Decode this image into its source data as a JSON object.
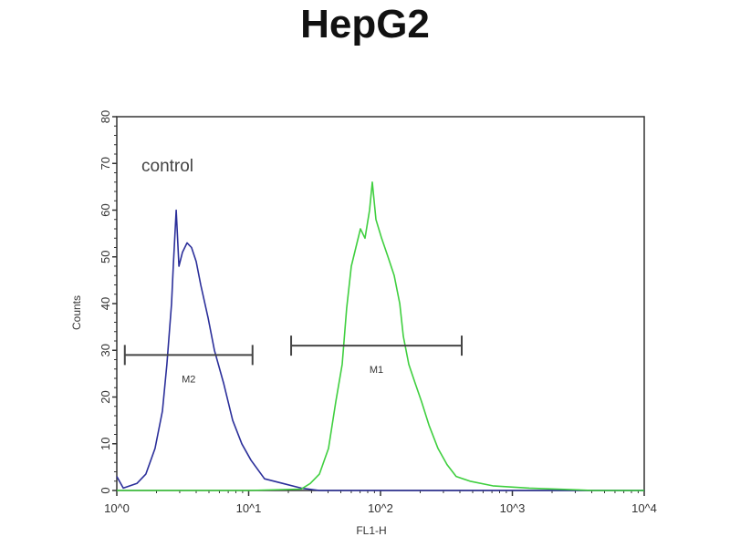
{
  "chart_data": {
    "type": "line",
    "title": "HepG2",
    "xlabel": "FL1-H",
    "ylabel": "Counts",
    "x_scale": "log",
    "xlim": [
      1,
      10000
    ],
    "ylim": [
      0,
      80
    ],
    "x_ticks": [
      "10^0",
      "10^1",
      "10^2",
      "10^3",
      "10^4"
    ],
    "y_ticks": [
      0,
      10,
      20,
      30,
      40,
      50,
      60,
      70,
      80
    ],
    "grid": false,
    "annotations": [
      {
        "text": "control"
      }
    ],
    "markers": [
      {
        "name": "M2",
        "x_range": [
          1.15,
          10.7
        ],
        "y": 29
      },
      {
        "name": "M1",
        "x_range": [
          21,
          413
        ],
        "y": 31
      }
    ],
    "series": [
      {
        "color": "#2b2f9a",
        "x": [
          1,
          1.12,
          1.42,
          1.66,
          1.95,
          2.22,
          2.4,
          2.6,
          2.68,
          2.82,
          2.96,
          3.15,
          3.41,
          3.69,
          4.0,
          4.33,
          4.92,
          5.5,
          6.45,
          7.57,
          8.87,
          10.4,
          13.2,
          18.2,
          25,
          34.4,
          100,
          1000,
          10000
        ],
        "y": [
          3,
          0.5,
          1.5,
          3.5,
          9,
          17,
          27,
          40,
          48,
          60,
          48,
          51,
          53,
          52,
          49,
          44,
          37,
          30,
          23,
          15,
          10,
          6.5,
          2.5,
          1.5,
          0.5,
          0,
          0,
          0,
          0
        ]
      },
      {
        "color": "#3fcf3f",
        "x": [
          1,
          10,
          25,
          29.3,
          34.4,
          40.3,
          45.8,
          51.2,
          55.4,
          60.1,
          65,
          70.4,
          76.3,
          82.6,
          86.6,
          92.3,
          102,
          114,
          127,
          140,
          149,
          164,
          183,
          205,
          233,
          273,
          320,
          375,
          477,
          710,
          1343,
          4096,
          10000
        ],
        "y": [
          0,
          0,
          0.3,
          1.5,
          3.5,
          9,
          19,
          27,
          39,
          48,
          52,
          56,
          54,
          60,
          66,
          58,
          54,
          50,
          46,
          40,
          33,
          27,
          23,
          19,
          14,
          9,
          5.5,
          3,
          2,
          1,
          0.5,
          0,
          0
        ]
      }
    ]
  }
}
